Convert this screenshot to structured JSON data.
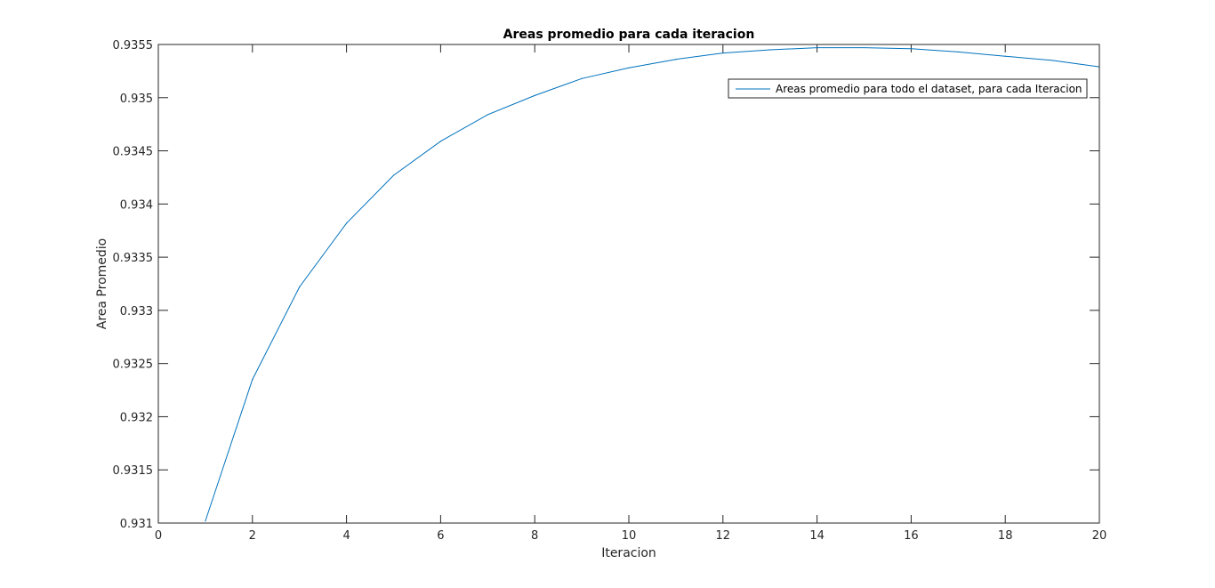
{
  "chart_data": {
    "type": "line",
    "title": "Areas promedio para cada iteracion",
    "xlabel": "Iteracion",
    "ylabel": "Area Promedio",
    "xlim": [
      0,
      20
    ],
    "ylim": [
      0.931,
      0.9355
    ],
    "xticks": [
      0,
      2,
      4,
      6,
      8,
      10,
      12,
      14,
      16,
      18,
      20
    ],
    "xtick_labels": [
      "0",
      "2",
      "4",
      "6",
      "8",
      "10",
      "12",
      "14",
      "16",
      "18",
      "20"
    ],
    "yticks": [
      0.931,
      0.9315,
      0.932,
      0.9325,
      0.933,
      0.9335,
      0.934,
      0.9345,
      0.935,
      0.9355
    ],
    "ytick_labels": [
      "0.931",
      "0.9315",
      "0.932",
      "0.9325",
      "0.933",
      "0.9335",
      "0.934",
      "0.9345",
      "0.935",
      "0.9355"
    ],
    "grid": false,
    "legend_position": "top-right",
    "series": [
      {
        "name": "Areas promedio para todo el dataset, para cada Iteracion",
        "color": "#0072bd",
        "x": [
          1,
          2,
          3,
          4,
          5,
          6,
          7,
          8,
          9,
          10,
          11,
          12,
          13,
          14,
          15,
          16,
          17,
          18,
          19,
          20
        ],
        "y": [
          0.93102,
          0.93235,
          0.93322,
          0.93382,
          0.93427,
          0.93459,
          0.93484,
          0.93502,
          0.93518,
          0.93528,
          0.93536,
          0.93542,
          0.93545,
          0.93547,
          0.93547,
          0.93546,
          0.93543,
          0.93539,
          0.93535,
          0.93529
        ]
      }
    ]
  }
}
